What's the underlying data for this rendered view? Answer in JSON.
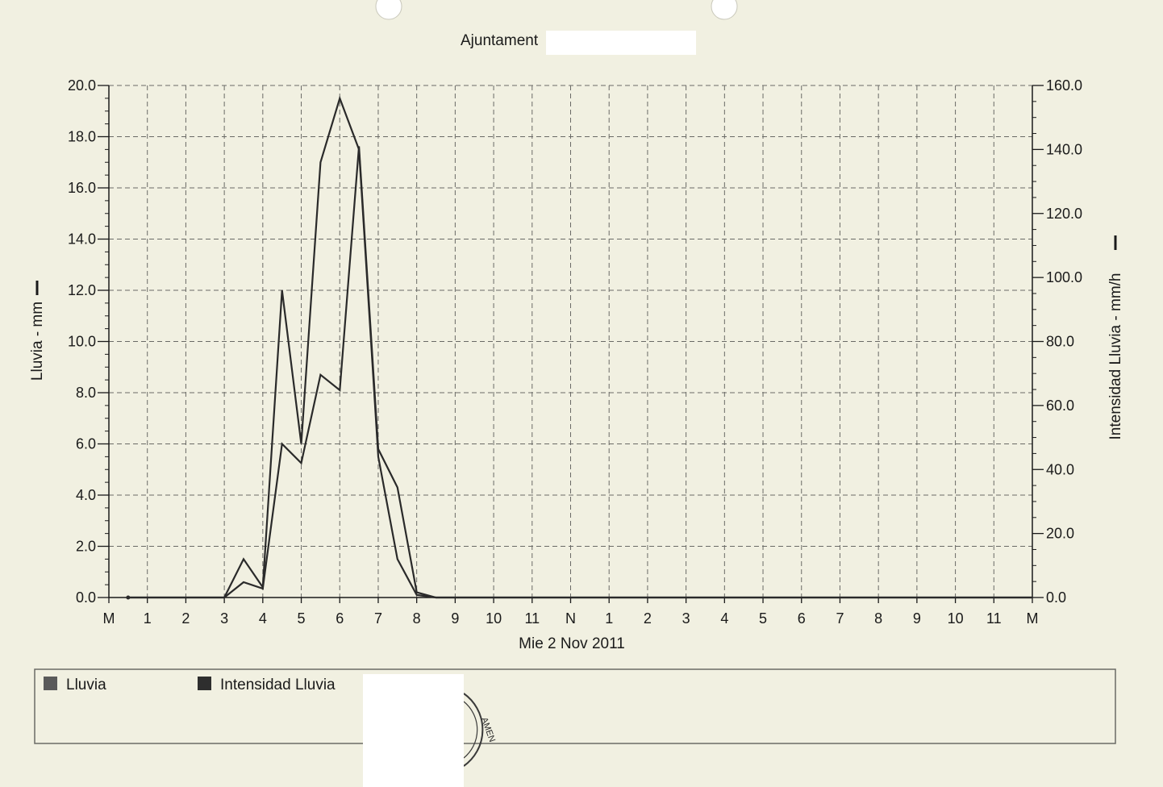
{
  "header": {
    "title": "Ajuntament"
  },
  "colors": {
    "paper": "#f1f0e1",
    "line": "#2a2a2a",
    "grid": "#6a6a66",
    "legend_swatch_lluvia": "#5a5a5a",
    "legend_swatch_intensidad": "#2e2e2e"
  },
  "stamp": {
    "text": "AMEN"
  },
  "chart_data": {
    "type": "line",
    "xlabel": "Mie 2 Nov 2011",
    "ylabel": "Lluvia - mm",
    "ylabel_right": "Intensidad Lluvia - mm/h",
    "x_tick_labels": [
      "M",
      "1",
      "2",
      "3",
      "4",
      "5",
      "6",
      "7",
      "8",
      "9",
      "10",
      "11",
      "N",
      "1",
      "2",
      "3",
      "4",
      "5",
      "6",
      "7",
      "8",
      "9",
      "10",
      "11",
      "M"
    ],
    "xlim": [
      0,
      24
    ],
    "ylim": [
      0,
      20
    ],
    "y2lim": [
      0,
      160
    ],
    "y_tick_labels": [
      "0.0",
      "2.0",
      "4.0",
      "6.0",
      "8.0",
      "10.0",
      "12.0",
      "14.0",
      "16.0",
      "18.0",
      "20.0"
    ],
    "y2_tick_labels": [
      "0.0",
      "20.0",
      "40.0",
      "60.0",
      "80.0",
      "100.0",
      "120.0",
      "140.0",
      "160.0"
    ],
    "grid": true,
    "legend_position": "bottom",
    "series": [
      {
        "name": "Lluvia",
        "axis": "left",
        "x": [
          0.5,
          1,
          2,
          3,
          3.5,
          4,
          4.5,
          5,
          5.5,
          6,
          6.5,
          7,
          7.5,
          8,
          8.5,
          9,
          12,
          24
        ],
        "y": [
          0.0,
          0.0,
          0.0,
          0.0,
          1.5,
          0.4,
          12.0,
          6.0,
          17.0,
          19.5,
          17.5,
          5.5,
          1.5,
          0.1,
          0.0,
          0.0,
          0.0,
          0.0
        ]
      },
      {
        "name": "Intensidad Lluvia",
        "axis": "right",
        "x": [
          0.5,
          1,
          2,
          3,
          3.5,
          4,
          4.5,
          5,
          5.5,
          6,
          6.5,
          7,
          7.5,
          8,
          8.5,
          9,
          12,
          24
        ],
        "y": [
          0.0,
          0.0,
          0.0,
          0.0,
          4.8,
          2.8,
          48.0,
          42.0,
          69.6,
          64.8,
          141.0,
          46.4,
          34.4,
          1.6,
          0.0,
          0.0,
          0.0,
          0.0
        ]
      }
    ]
  }
}
